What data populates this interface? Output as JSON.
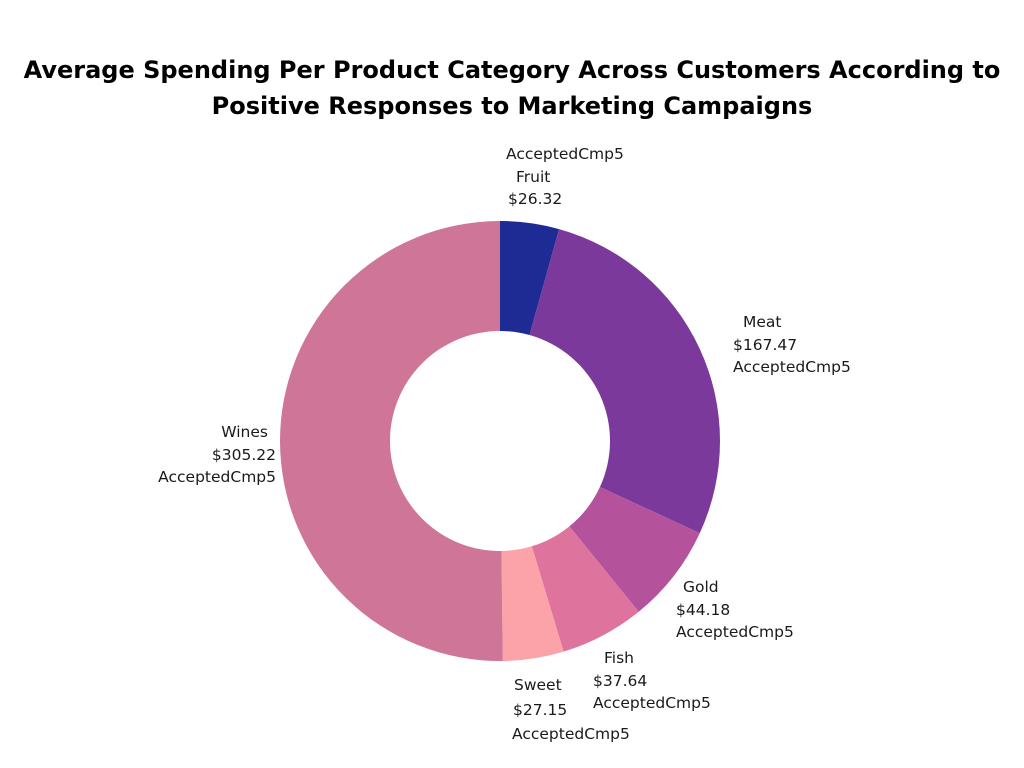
{
  "title_lines": [
    "Average Spending Per Product Category Across Customers According to",
    "Positive Responses to Marketing Campaigns"
  ],
  "chart_data": {
    "type": "pie",
    "donut": true,
    "title": "Average Spending Per Product Category Across Customers According to Positive Responses to Marketing Campaigns",
    "slices": [
      {
        "category": "Fruit",
        "value": 26.32,
        "value_label": "$26.32",
        "campaign": "AcceptedCmp5",
        "color": "#1f2b94"
      },
      {
        "category": "Meat",
        "value": 167.47,
        "value_label": "$167.47",
        "campaign": "AcceptedCmp5",
        "color": "#7b3a9b"
      },
      {
        "category": "Gold",
        "value": 44.18,
        "value_label": "$44.18",
        "campaign": "AcceptedCmp5",
        "color": "#b4539c"
      },
      {
        "category": "Fish",
        "value": 37.64,
        "value_label": "$37.64",
        "campaign": "AcceptedCmp5",
        "color": "#de739d"
      },
      {
        "category": "Sweet",
        "value": 27.15,
        "value_label": "$27.15",
        "campaign": "AcceptedCmp5",
        "color": "#fba3a8"
      },
      {
        "category": "Wines",
        "value": 305.22,
        "value_label": "$305.22",
        "campaign": "AcceptedCmp5",
        "color": "#cf7598"
      }
    ]
  }
}
